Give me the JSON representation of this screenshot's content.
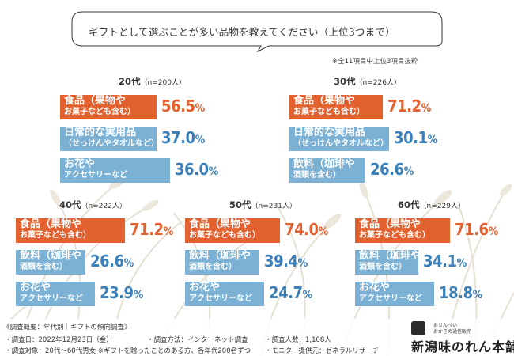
{
  "question": "ギフトとして選ぶことが多い品物を教えてください（上位3つまで）",
  "note": "※全11項目中上位3項目抜粋",
  "colors": {
    "orange": "#e2612f",
    "blue_bar": "#7ab1d4",
    "blue_text": "#3a7fb8"
  },
  "chart_data": {
    "type": "bar",
    "title": "ギフトとして選ぶことが多い品物を教えてください（上位3つまで）",
    "note": "※全11項目中上位3項目抜粋",
    "unit": "%",
    "groups": [
      {
        "name": "20代",
        "n": "（n=200人）",
        "items": [
          {
            "label": [
              "食品（果物や",
              "お菓子なども含む）"
            ],
            "value": 56.5,
            "display": "56.5",
            "color": "orange"
          },
          {
            "label": [
              "日常的な実用品",
              "（せっけんやタオルなど）"
            ],
            "value": 37.0,
            "display": "37.0",
            "color": "blue"
          },
          {
            "label": [
              "お花や",
              "アクセサリーなど"
            ],
            "value": 36.0,
            "display": "36.0",
            "color": "blue"
          }
        ]
      },
      {
        "name": "30代",
        "n": "（n=226人）",
        "items": [
          {
            "label": [
              "食品（果物や",
              "お菓子なども含む）"
            ],
            "value": 71.2,
            "display": "71.2",
            "color": "orange"
          },
          {
            "label": [
              "日常的な実用品",
              "（せっけんやタオルなど）"
            ],
            "value": 30.1,
            "display": "30.1",
            "color": "blue"
          },
          {
            "label": [
              "飲料（珈琲や",
              "酒類を含む）"
            ],
            "value": 26.6,
            "display": "26.6",
            "color": "blue"
          }
        ]
      },
      {
        "name": "40代",
        "n": "（n=222人）",
        "items": [
          {
            "label": [
              "食品（果物や",
              "お菓子なども含む）"
            ],
            "value": 71.2,
            "display": "71.2",
            "color": "orange"
          },
          {
            "label": [
              "飲料（珈琲や",
              "酒類を含む）"
            ],
            "value": 26.6,
            "display": "26.6",
            "color": "blue"
          },
          {
            "label": [
              "お花や",
              "アクセサリーなど"
            ],
            "value": 23.9,
            "display": "23.9",
            "color": "blue"
          }
        ]
      },
      {
        "name": "50代",
        "n": "（n=231人）",
        "items": [
          {
            "label": [
              "食品（果物や",
              "お菓子なども含む）"
            ],
            "value": 74.0,
            "display": "74.0",
            "color": "orange"
          },
          {
            "label": [
              "飲料（珈琲や",
              "酒類を含む）"
            ],
            "value": 39.4,
            "display": "39.4",
            "color": "blue"
          },
          {
            "label": [
              "お花や",
              "アクセサリーなど"
            ],
            "value": 24.7,
            "display": "24.7",
            "color": "blue"
          }
        ]
      },
      {
        "name": "60代",
        "n": "（n=229人）",
        "items": [
          {
            "label": [
              "食品（果物や",
              "お菓子なども含む）"
            ],
            "value": 71.6,
            "display": "71.6",
            "color": "orange"
          },
          {
            "label": [
              "飲料（珈琲や",
              "酒類を含む）"
            ],
            "value": 34.1,
            "display": "34.1",
            "color": "blue"
          },
          {
            "label": [
              "お花や",
              "アクセサリーなど"
            ],
            "value": 18.8,
            "display": "18.8",
            "color": "blue"
          }
        ]
      }
    ]
  },
  "footer": {
    "heading": "《調査概要：年代別｜ギフトの傾向調査》",
    "date": "・調査日：2022年12月23日（金）",
    "method": "・調査方法：インターネット調査",
    "count": "・調査人数：1,108人",
    "target": "・調査対象：20代〜60代男女 ※ギフトを贈ったことのある方、各年代200名ずつ",
    "provider": "・モニター提供元：ゼネラルリサーチ"
  },
  "brand": {
    "sub1": "おせんべい",
    "sub2": "おかきの通信販売",
    "name": "新潟味のれん本舗"
  }
}
